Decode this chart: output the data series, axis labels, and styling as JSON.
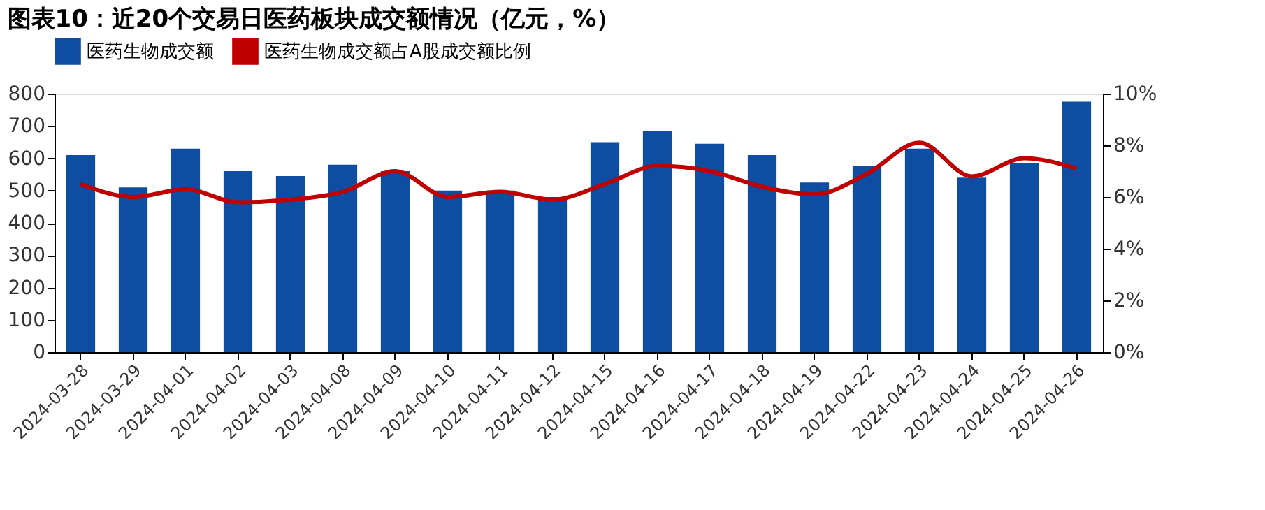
{
  "chart_data": {
    "type": "bar",
    "title": "图表10：近20个交易日医药板块成交额情况（亿元，%）",
    "categories": [
      "2024-03-28",
      "2024-03-29",
      "2024-04-01",
      "2024-04-02",
      "2024-04-03",
      "2024-04-08",
      "2024-04-09",
      "2024-04-10",
      "2024-04-11",
      "2024-04-12",
      "2024-04-15",
      "2024-04-16",
      "2024-04-17",
      "2024-04-18",
      "2024-04-19",
      "2024-04-22",
      "2024-04-23",
      "2024-04-24",
      "2024-04-25",
      "2024-04-26"
    ],
    "series": [
      {
        "name": "医药生物成交额",
        "color": "#0d4ea3",
        "values": [
          610,
          510,
          630,
          560,
          545,
          580,
          560,
          500,
          500,
          480,
          650,
          685,
          645,
          610,
          525,
          575,
          630,
          540,
          585,
          775
        ]
      },
      {
        "name": "医药生物成交额占A股成交额比例",
        "color": "#c00000",
        "type": "line",
        "axis": "y2",
        "values": [
          6.5,
          6.0,
          6.3,
          5.8,
          5.9,
          6.2,
          7.0,
          6.0,
          6.2,
          5.9,
          6.5,
          7.2,
          7.0,
          6.4,
          6.1,
          6.9,
          8.1,
          6.8,
          7.5,
          7.1
        ]
      }
    ],
    "ylim": [
      0,
      800
    ],
    "yticks": [
      0,
      100,
      200,
      300,
      400,
      500,
      600,
      700,
      800
    ],
    "y2lim": [
      0,
      10
    ],
    "y2ticks": [
      {
        "value": 0,
        "label": "0%"
      },
      {
        "value": 2,
        "label": "2%"
      },
      {
        "value": 4,
        "label": "4%"
      },
      {
        "value": 6,
        "label": "6%"
      },
      {
        "value": 8,
        "label": "8%"
      },
      {
        "value": 10,
        "label": "10%"
      }
    ],
    "grid": false,
    "legend": "top",
    "marker": "none",
    "line_style": "solid"
  }
}
